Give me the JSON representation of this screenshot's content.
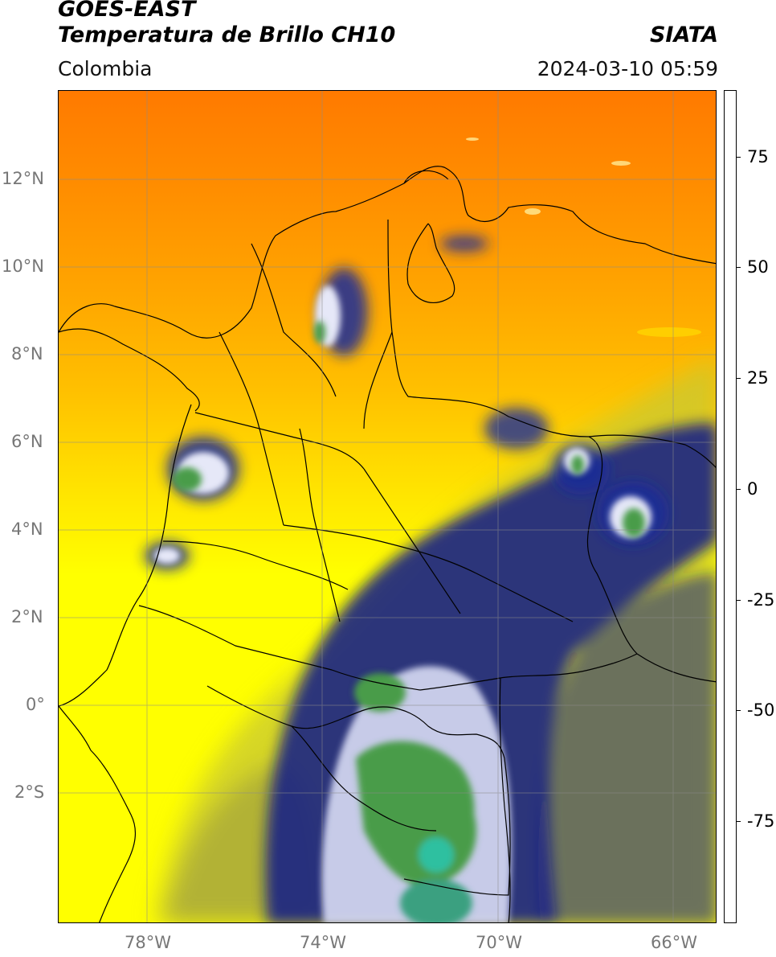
{
  "header": {
    "satellite": "GOES-EAST",
    "product": "Temperatura de Brillo CH10",
    "region": "Colombia",
    "agency": "SIATA",
    "timestamp": "2024-03-10 05:59"
  },
  "map": {
    "lat_labels": [
      "12°N",
      "10°N",
      "8°N",
      "6°N",
      "4°N",
      "2°N",
      "0°",
      "2°S"
    ],
    "lon_labels": [
      "78°W",
      "74°W",
      "70°W",
      "66°W"
    ],
    "extent_lon": [
      -80,
      -65
    ],
    "extent_lat": [
      -5,
      14
    ]
  },
  "colorbar": {
    "labels": [
      "75",
      "50",
      "25",
      "0",
      "-25",
      "-50",
      "-75"
    ],
    "values": [
      75,
      50,
      25,
      0,
      -25,
      -50,
      -75
    ],
    "range": [
      -98,
      90
    ],
    "stops": [
      {
        "v": -98,
        "c": "#ffffff"
      },
      {
        "v": -93.5,
        "c": "#ffffff"
      },
      {
        "v": -93.4,
        "c": "#00e0e0"
      },
      {
        "v": -85,
        "c": "#20c8a8"
      },
      {
        "v": -72,
        "c": "#2a8a48"
      },
      {
        "v": -60,
        "c": "#5aaa50"
      },
      {
        "v": -52,
        "c": "#ffffff"
      },
      {
        "v": -42,
        "c": "#7070c0"
      },
      {
        "v": -33,
        "c": "#101a8a"
      },
      {
        "v": -28,
        "c": "#151a60"
      },
      {
        "v": -24,
        "c": "#c8c830"
      },
      {
        "v": -15,
        "c": "#ffff00"
      },
      {
        "v": -5,
        "c": "#ffc000"
      },
      {
        "v": 0,
        "c": "#ff9a00"
      },
      {
        "v": 7.5,
        "c": "#ff2000"
      },
      {
        "v": 7.6,
        "c": "#000000"
      },
      {
        "v": 90,
        "c": "#000000"
      }
    ]
  }
}
